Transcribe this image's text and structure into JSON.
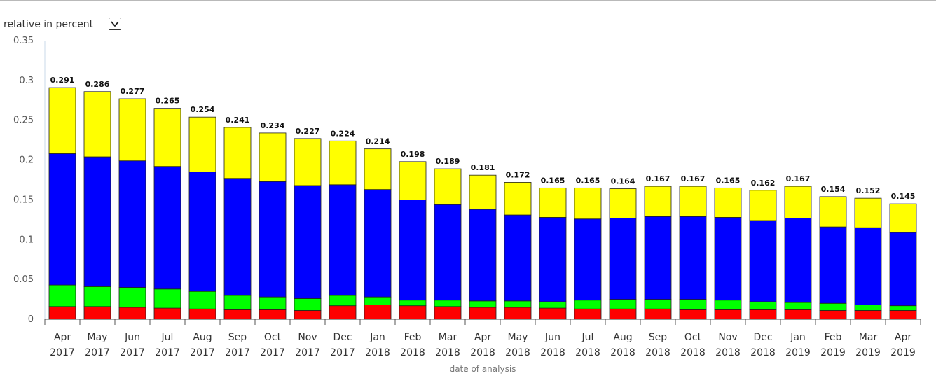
{
  "controls": {
    "mode_label": "relative in percent",
    "mode_dropdown_icon": "chevron-down-icon"
  },
  "colors": {
    "red": "#ff0000",
    "green": "#00ff00",
    "blue": "#0000ff",
    "yellow": "#ffff00"
  },
  "chart_data": {
    "type": "bar",
    "stacked": true,
    "xlabel": "date of analysis",
    "ylabel": "",
    "ylim": [
      0,
      0.35
    ],
    "yticks": [
      "0",
      "0.05",
      "0.1",
      "0.15",
      "0.2",
      "0.25",
      "0.3",
      "0.35"
    ],
    "grid": false,
    "legend": "none",
    "categories": [
      [
        "Apr",
        "2017"
      ],
      [
        "May",
        "2017"
      ],
      [
        "Jun",
        "2017"
      ],
      [
        "Jul",
        "2017"
      ],
      [
        "Aug",
        "2017"
      ],
      [
        "Sep",
        "2017"
      ],
      [
        "Oct",
        "2017"
      ],
      [
        "Nov",
        "2017"
      ],
      [
        "Dec",
        "2017"
      ],
      [
        "Jan",
        "2018"
      ],
      [
        "Feb",
        "2018"
      ],
      [
        "Mar",
        "2018"
      ],
      [
        "Apr",
        "2018"
      ],
      [
        "May",
        "2018"
      ],
      [
        "Jun",
        "2018"
      ],
      [
        "Jul",
        "2018"
      ],
      [
        "Aug",
        "2018"
      ],
      [
        "Sep",
        "2018"
      ],
      [
        "Oct",
        "2018"
      ],
      [
        "Nov",
        "2018"
      ],
      [
        "Dec",
        "2018"
      ],
      [
        "Jan",
        "2019"
      ],
      [
        "Feb",
        "2019"
      ],
      [
        "Mar",
        "2019"
      ],
      [
        "Apr",
        "2019"
      ]
    ],
    "totals": [
      "0.291",
      "0.286",
      "0.277",
      "0.265",
      "0.254",
      "0.241",
      "0.234",
      "0.227",
      "0.224",
      "0.214",
      "0.198",
      "0.189",
      "0.181",
      "0.172",
      "0.165",
      "0.165",
      "0.164",
      "0.167",
      "0.167",
      "0.165",
      "0.162",
      "0.167",
      "0.154",
      "0.152",
      "0.145"
    ],
    "series": [
      {
        "color": "#ff0000",
        "values": [
          0.016,
          0.016,
          0.015,
          0.014,
          0.013,
          0.012,
          0.012,
          0.011,
          0.017,
          0.018,
          0.017,
          0.016,
          0.015,
          0.015,
          0.014,
          0.013,
          0.013,
          0.013,
          0.012,
          0.012,
          0.012,
          0.012,
          0.011,
          0.011,
          0.011
        ]
      },
      {
        "color": "#00ff00",
        "values": [
          0.027,
          0.025,
          0.025,
          0.024,
          0.022,
          0.018,
          0.016,
          0.015,
          0.013,
          0.01,
          0.007,
          0.008,
          0.008,
          0.008,
          0.008,
          0.011,
          0.012,
          0.012,
          0.013,
          0.012,
          0.01,
          0.009,
          0.009,
          0.007,
          0.006
        ]
      },
      {
        "color": "#0000ff",
        "values": [
          0.165,
          0.163,
          0.159,
          0.154,
          0.15,
          0.147,
          0.145,
          0.142,
          0.139,
          0.135,
          0.126,
          0.12,
          0.115,
          0.108,
          0.106,
          0.102,
          0.102,
          0.104,
          0.104,
          0.104,
          0.102,
          0.106,
          0.096,
          0.097,
          0.092
        ]
      },
      {
        "color": "#ffff00",
        "values": [
          0.083,
          0.082,
          0.078,
          0.073,
          0.069,
          0.064,
          0.061,
          0.059,
          0.055,
          0.051,
          0.048,
          0.045,
          0.043,
          0.041,
          0.037,
          0.039,
          0.037,
          0.038,
          0.038,
          0.037,
          0.038,
          0.04,
          0.038,
          0.037,
          0.036
        ]
      }
    ]
  }
}
